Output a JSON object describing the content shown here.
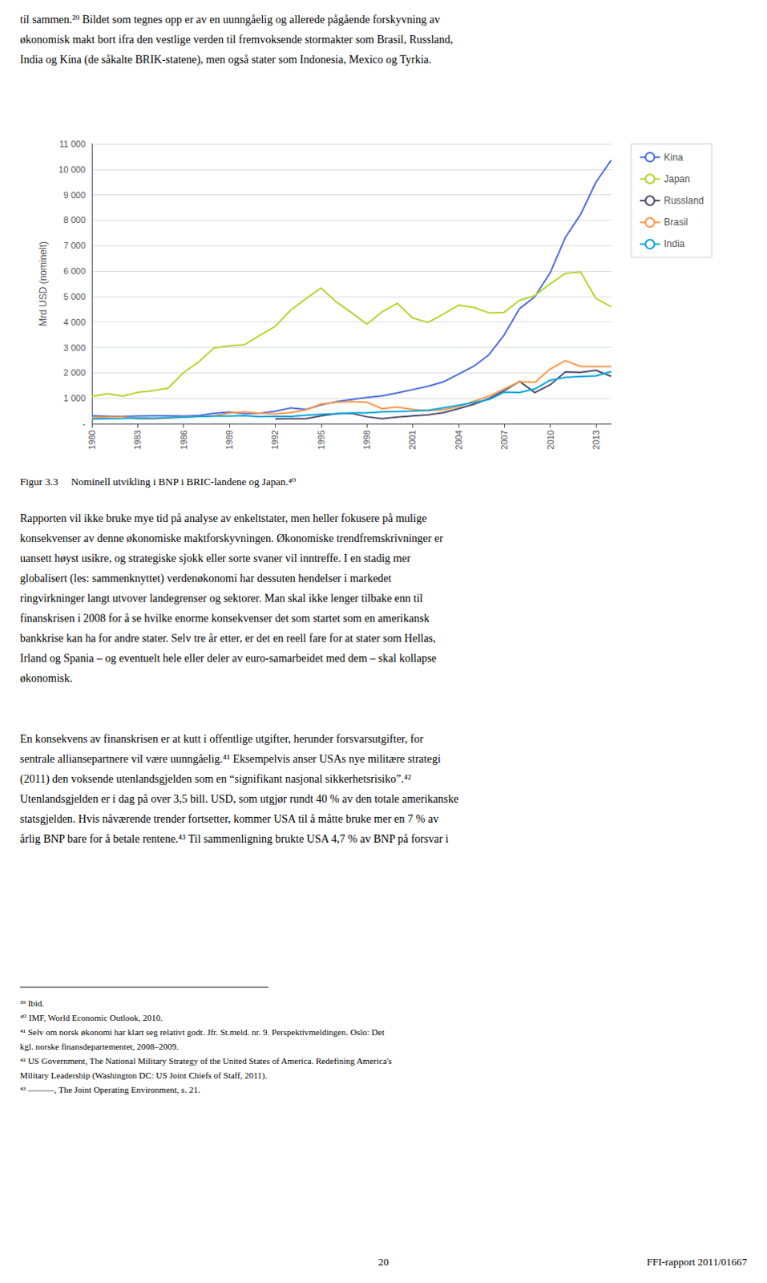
{
  "chart_data": {
    "type": "line",
    "title": "Figur 3.3  Nominell utvikling i BNP i BRIC-landene og Japan.⁴⁰",
    "ylabel": "Mrd USD (nominelt)",
    "x": [
      1980,
      1981,
      1982,
      1983,
      1984,
      1985,
      1986,
      1987,
      1988,
      1989,
      1990,
      1991,
      1992,
      1993,
      1994,
      1995,
      1996,
      1997,
      1998,
      1999,
      2000,
      2001,
      2002,
      2003,
      2004,
      2005,
      2006,
      2007,
      2008,
      2009,
      2010,
      2011,
      2012,
      2013,
      2014
    ],
    "series": [
      {
        "name": "Kina",
        "values": [
          305,
          294,
          284,
          302,
          310,
          309,
          302,
          325,
          407,
          457,
          390,
          410,
          490,
          617,
          560,
          734,
          863,
          953,
          1029,
          1094,
          1211,
          1340,
          1471,
          1641,
          1942,
          2257,
          2713,
          3494,
          4522,
          4991,
          5930,
          7322,
          8229,
          9490,
          10360
        ]
      },
      {
        "name": "Japan",
        "values": [
          1071,
          1180,
          1086,
          1230,
          1299,
          1399,
          2003,
          2432,
          2978,
          3054,
          3103,
          3478,
          3823,
          4454,
          4907,
          5334,
          4788,
          4365,
          3914,
          4395,
          4731,
          4159,
          3980,
          4302,
          4656,
          4572,
          4356,
          4380,
          4849,
          5035,
          5495,
          5905,
          5961,
          4919,
          4601
        ]
      },
      {
        "name": "Russland",
        "values": [
          null,
          null,
          null,
          null,
          null,
          null,
          null,
          null,
          null,
          null,
          null,
          null,
          185,
          195,
          195,
          306,
          391,
          405,
          271,
          196,
          260,
          307,
          345,
          431,
          592,
          764,
          990,
          1300,
          1661,
          1223,
          1525,
          2032,
          2017,
          2097,
          1861
        ]
      },
      {
        "name": "Brasil",
        "values": [
          235,
          263,
          271,
          189,
          189,
          222,
          257,
          282,
          305,
          416,
          462,
          407,
          387,
          430,
          543,
          770,
          840,
          870,
          844,
          588,
          655,
          559,
          507,
          552,
          664,
          882,
          1089,
          1366,
          1653,
          1625,
          2143,
          2477,
          2248,
          2246,
          2244
        ]
      },
      {
        "name": "India",
        "values": [
          183,
          196,
          204,
          222,
          213,
          237,
          252,
          283,
          296,
          296,
          317,
          274,
          290,
          280,
          330,
          367,
          393,
          423,
          428,
          466,
          477,
          494,
          524,
          619,
          721,
          834,
          949,
          1239,
          1224,
          1366,
          1708,
          1823,
          1858,
          1877,
          2049
        ]
      }
    ],
    "xlim": [
      1980,
      2014
    ],
    "xticks": [
      1980,
      1983,
      1986,
      1989,
      1992,
      1995,
      1998,
      2001,
      2004,
      2007,
      2010,
      2013
    ],
    "ylim": [
      0,
      11000
    ],
    "yticks": [
      {
        "value": 0,
        "label": "-"
      },
      {
        "value": 1000,
        "label": "1 000"
      },
      {
        "value": 2000,
        "label": "2 000"
      },
      {
        "value": 3000,
        "label": "3 000"
      },
      {
        "value": 4000,
        "label": "4 000"
      },
      {
        "value": 5000,
        "label": "5 000"
      },
      {
        "value": 6000,
        "label": "6 000"
      },
      {
        "value": 7000,
        "label": "7 000"
      },
      {
        "value": 8000,
        "label": "8 000"
      },
      {
        "value": 9000,
        "label": "9 000"
      },
      {
        "value": 10000,
        "label": "10 000"
      },
      {
        "value": 11000,
        "label": "11 000"
      }
    ],
    "grid": true,
    "legend": "right",
    "annotations": [
      "til sammen.³⁹ Bildet som tegnes opp er av en uunngåelig og allerede pågående forskyvning av\nøkonomisk makt bort ifra den vestlige verden til fremvoksende stormakter som Brasil, Russland,\nIndia og Kina (de såkalte BRIK-statene), men også stater som Indonesia, Mexico og Tyrkia.",
      "Rapporten vil ikke bruke mye tid på analyse av enkeltstater, men heller fokusere på mulige\nkonsekvenser av denne økonomiske maktforskyvningen. Økonomiske trendfremskrivninger er\nuansett høyst usikre, og strategiske sjokk eller sorte svaner vil inntreffe. I en stadig mer\nglobalisert (les: sammenknyttet) verdenøkonomi har dessuten hendelser i markedet\nringvirkninger langt utvover landegrenser og sektorer. Man skal ikke lenger tilbake enn til\nfinanskrisen i 2008 for å se hvilke enorme konsekvenser det som startet som en amerikansk\nbankkrise kan ha for andre stater. Selv tre år etter, er det en reell fare for at stater som Hellas,\nIrland og Spania – og eventuelt hele eller deler av euro-samarbeidet med dem – skal kollapse\nøkonomisk.",
      "En konsekvens av finanskrisen er at kutt i offentlige utgifter, herunder forsvarsutgifter, for\nsentrale alliansepartnere vil være uunngåelig.⁴¹ Eksempelvis anser USAs nye militære strategi\n(2011) den voksende utenlandsgjelden som en “signifikant nasjonal sikkerhetsrisiko”.⁴²\nUtenlandsgjelden er i dag på over 3,5 bill. USD, som utgjør rundt 40 % av den totale amerikanske\nstatsgjelden. Hvis nåværende trender fortsetter, kommer USA til å måtte bruke mer en 7 % av\nårlig BNP bare for å betale rentene.⁴³ Til sammenligning brukte USA 4,7 % av BNP på forsvar i",
      "³⁹ Ibid.\n⁴⁰ IMF, World Economic Outlook, 2010.\n⁴¹ Selv om norsk økonomi har klart seg relativt godt. Jfr. St.meld. nr. 9. Perspektivmeldingen. Oslo: Det\nkgl. norske finansdepartementet, 2008–2009.\n⁴² US Government, The National Military Strategy of the United States of America. Redefining America's\nMilitary Leadership (Washington DC: US Joint Chiefs of Staff, 2011).\n⁴³ ———, The Joint Operating Environment, s. 21.",
      "20",
      "FFI-rapport 2011/01667"
    ]
  }
}
